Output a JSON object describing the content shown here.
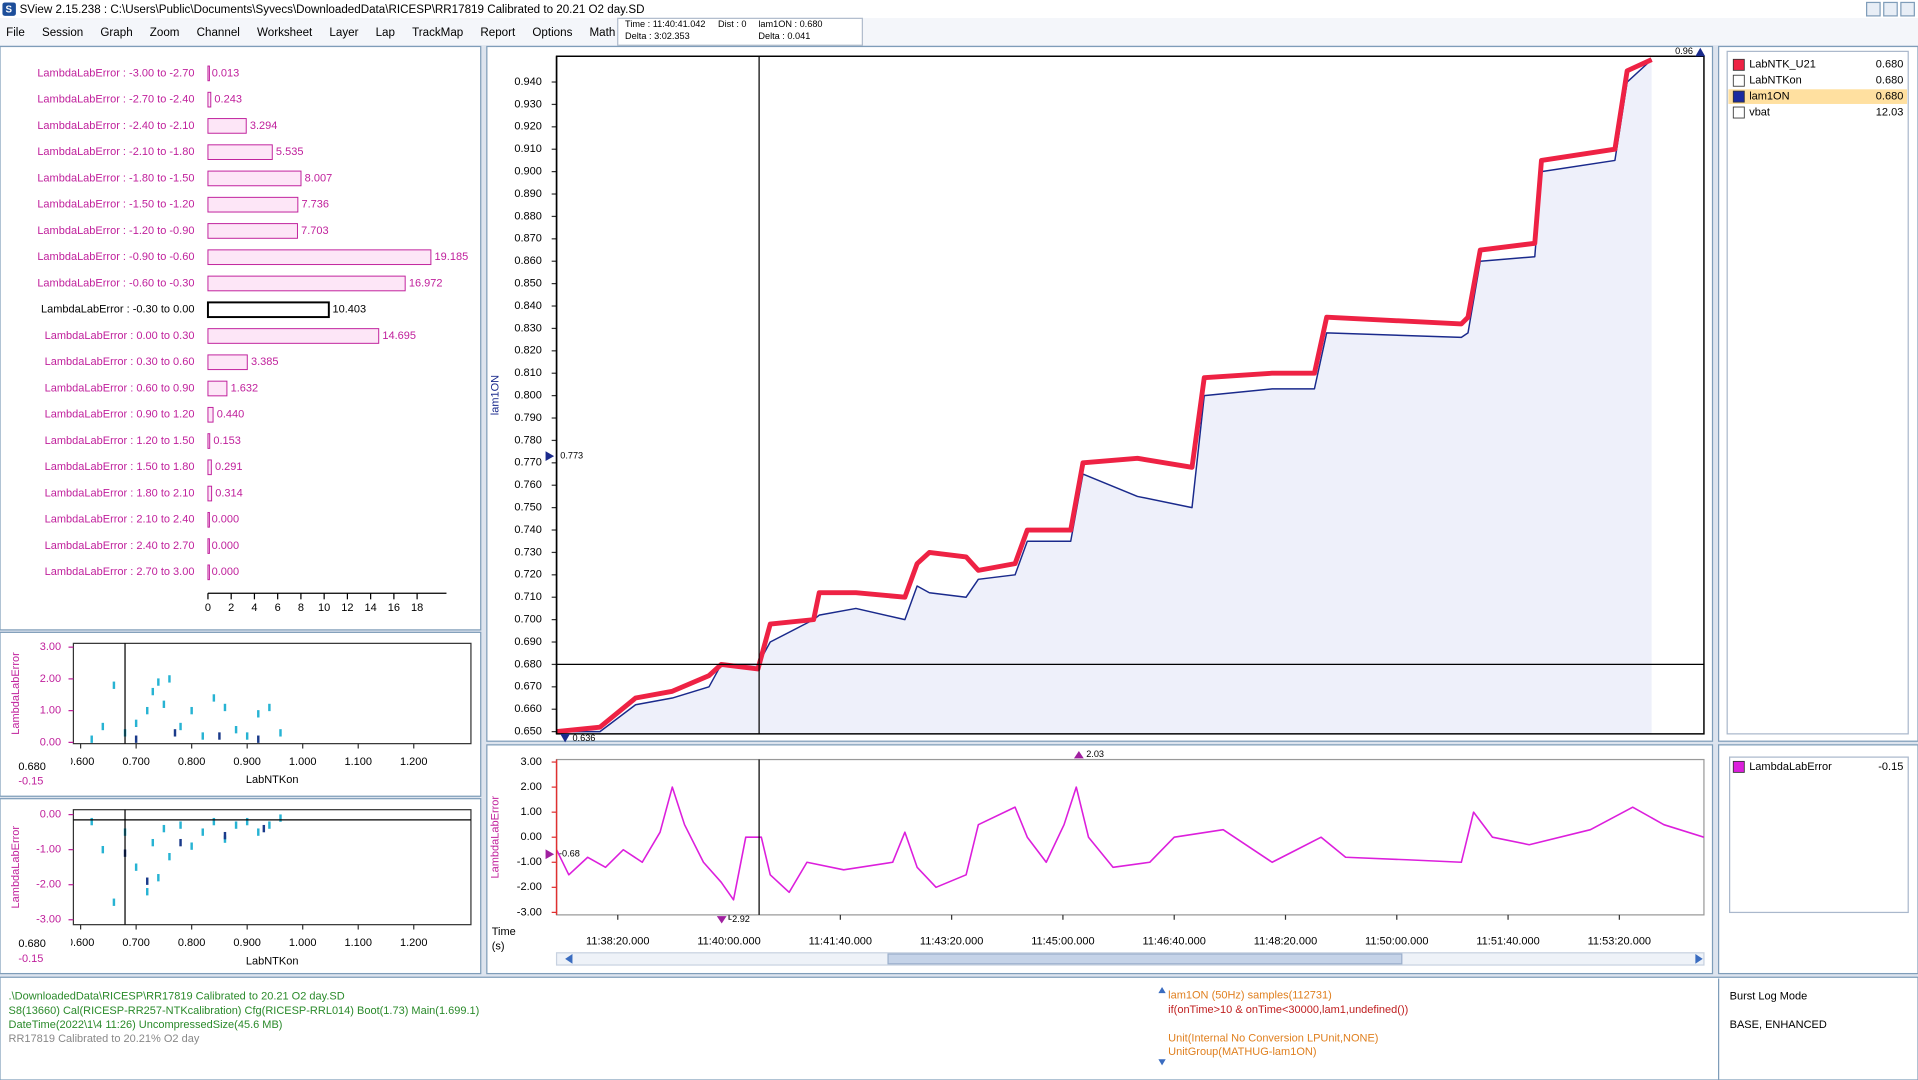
{
  "window": {
    "title": "SView 2.15.238  :  C:\\Users\\Public\\Documents\\Syvecs\\DownloadedData\\RICESP\\RR17819 Calibrated to 20.21 O2 day.SD"
  },
  "menu": [
    "File",
    "Session",
    "Graph",
    "Zoom",
    "Channel",
    "Worksheet",
    "Layer",
    "Lap",
    "TrackMap",
    "Report",
    "Options",
    "Math"
  ],
  "status": {
    "time": "Time : 11:40:41.042",
    "dist": "Dist : 0",
    "channel": "lam1ON : 0.680",
    "delta_time": "Delta : 3:02.353",
    "delta_value": "Delta : 0.041"
  },
  "histogram": {
    "type": "bar",
    "color": "#c0209c",
    "fill": "#fde6f7",
    "selected": 9,
    "selected_color": "#000000",
    "categories": [
      "LambdaLabError : -3.00 to -2.70",
      "LambdaLabError : -2.70 to -2.40",
      "LambdaLabError : -2.40 to -2.10",
      "LambdaLabError : -2.10 to -1.80",
      "LambdaLabError : -1.80 to -1.50",
      "LambdaLabError : -1.50 to -1.20",
      "LambdaLabError : -1.20 to -0.90",
      "LambdaLabError : -0.90 to -0.60",
      "LambdaLabError : -0.60 to -0.30",
      "LambdaLabError : -0.30 to 0.00",
      "LambdaLabError : 0.00 to 0.30",
      "LambdaLabError : 0.30 to 0.60",
      "LambdaLabError : 0.60 to 0.90",
      "LambdaLabError : 0.90 to 1.20",
      "LambdaLabError : 1.20 to 1.50",
      "LambdaLabError : 1.50 to 1.80",
      "LambdaLabError : 1.80 to 2.10",
      "LambdaLabError : 2.10 to 2.40",
      "LambdaLabError : 2.40 to 2.70",
      "LambdaLabError : 2.70 to 3.00"
    ],
    "values": [
      0.013,
      0.243,
      3.294,
      5.535,
      8.007,
      7.736,
      7.703,
      19.185,
      16.972,
      10.403,
      14.695,
      3.385,
      1.632,
      0.44,
      0.153,
      0.291,
      0.314,
      0,
      0,
      0
    ],
    "value_labels": [
      "0.013",
      "0.243",
      "3.294",
      "5.535",
      "8.007",
      "7.736",
      "7.703",
      "19.185",
      "16.972",
      "10.403",
      "14.695",
      "3.385",
      "1.632",
      "0.440",
      "0.153",
      "0.291",
      "0.314",
      "0.000",
      "0.000",
      "0.000"
    ],
    "xlim": [
      0,
      20
    ],
    "xticks": [
      0,
      2,
      4,
      6,
      8,
      10,
      12,
      14,
      16,
      18
    ]
  },
  "scatter_top": {
    "type": "scatter",
    "ylabel": "LambdaLabError",
    "xlabel": "LabNTKon",
    "axis_color": "#c0209c",
    "xlim": [
      0.587,
      1.303
    ],
    "xticks": [
      {
        "value": 0.6,
        "label": "0.600"
      },
      {
        "value": 0.7,
        "label": "0.700"
      },
      {
        "value": 0.8,
        "label": "0.800"
      },
      {
        "value": 0.9,
        "label": "0.900"
      },
      {
        "value": 1.0,
        "label": "1.000"
      },
      {
        "value": 1.1,
        "label": "1.100"
      },
      {
        "value": 1.2,
        "label": "1.200"
      }
    ],
    "ylim": [
      -0.04,
      3.12
    ],
    "yticks": [
      {
        "value": 0,
        "label": "0.00"
      },
      {
        "value": 1,
        "label": "1.00"
      },
      {
        "value": 2,
        "label": "2.00"
      },
      {
        "value": 3,
        "label": "3.00"
      }
    ],
    "cursor_x": 0.68,
    "cursor_y": -0.15,
    "readout": [
      "0.680",
      "-0.15"
    ],
    "series": [
      {
        "color": "#27b3d3",
        "x": [
          0.62,
          0.64,
          0.66,
          0.68,
          0.7,
          0.72,
          0.73,
          0.74,
          0.75,
          0.76,
          0.78,
          0.8,
          0.82,
          0.84,
          0.86,
          0.88,
          0.9,
          0.92,
          0.94,
          0.96
        ],
        "y": [
          0.1,
          0.5,
          1.8,
          0.3,
          0.6,
          1.0,
          1.6,
          1.9,
          1.2,
          2.0,
          0.5,
          1.0,
          0.2,
          1.4,
          1.1,
          0.4,
          0.2,
          0.9,
          1.1,
          0.3
        ]
      },
      {
        "color": "#1a3a8a",
        "x": [
          0.7,
          0.77,
          0.85,
          0.92
        ],
        "y": [
          0.1,
          0.3,
          0.2,
          0.1
        ]
      }
    ]
  },
  "scatter_bottom": {
    "type": "scatter",
    "ylabel": "LambdaLabError",
    "xlabel": "LabNTKon",
    "axis_color": "#c0209c",
    "xlim": [
      0.587,
      1.303
    ],
    "xticks": [
      {
        "value": 0.6,
        "label": "0.600"
      },
      {
        "value": 0.7,
        "label": "0.700"
      },
      {
        "value": 0.8,
        "label": "0.800"
      },
      {
        "value": 0.9,
        "label": "0.900"
      },
      {
        "value": 1.0,
        "label": "1.000"
      },
      {
        "value": 1.1,
        "label": "1.100"
      },
      {
        "value": 1.2,
        "label": "1.200"
      }
    ],
    "ylim": [
      -3.14,
      0.14
    ],
    "yticks": [
      {
        "value": 0,
        "label": "0.00"
      },
      {
        "value": -1,
        "label": "-1.00"
      },
      {
        "value": -2,
        "label": "-2.00"
      },
      {
        "value": -3,
        "label": "-3.00"
      }
    ],
    "cursor_x": 0.68,
    "cursor_y": -0.15,
    "readout": [
      "0.680",
      "-0.15"
    ],
    "series": [
      {
        "color": "#27b3d3",
        "x": [
          0.62,
          0.64,
          0.66,
          0.68,
          0.7,
          0.72,
          0.73,
          0.74,
          0.75,
          0.76,
          0.78,
          0.8,
          0.82,
          0.84,
          0.86,
          0.88,
          0.9,
          0.92,
          0.94,
          0.96
        ],
        "y": [
          -0.2,
          -1.0,
          -2.5,
          -0.5,
          -1.5,
          -2.2,
          -0.8,
          -1.8,
          -0.4,
          -1.2,
          -0.3,
          -0.9,
          -0.5,
          -0.2,
          -0.7,
          -0.3,
          -0.2,
          -0.5,
          -0.3,
          -0.1
        ]
      },
      {
        "color": "#1a3a8a",
        "x": [
          0.68,
          0.72,
          0.78,
          0.86,
          0.93
        ],
        "y": [
          -1.1,
          -1.9,
          -0.8,
          -0.6,
          -0.4
        ]
      }
    ]
  },
  "time_axis": {
    "label": [
      "Time",
      "(s)"
    ],
    "xlim": [
      41845,
      42876
    ],
    "xticks": [
      {
        "value": 41900,
        "label": "11:38:20.000"
      },
      {
        "value": 42000,
        "label": "11:40:00.000"
      },
      {
        "value": 42100,
        "label": "11:41:40.000"
      },
      {
        "value": 42200,
        "label": "11:43:20.000"
      },
      {
        "value": 42300,
        "label": "11:45:00.000"
      },
      {
        "value": 42400,
        "label": "11:46:40.000"
      },
      {
        "value": 42500,
        "label": "11:48:20.000"
      },
      {
        "value": 42600,
        "label": "11:50:00.000"
      },
      {
        "value": 42700,
        "label": "11:51:40.000"
      },
      {
        "value": 42800,
        "label": "11:53:20.000"
      }
    ],
    "cursor": 42027
  },
  "main_chart": {
    "type": "line",
    "ylabel": "lam1ON",
    "area_color": "#eef0fa",
    "ylim": [
      0.649,
      0.9515
    ],
    "yticks": [
      {
        "value": 0.65,
        "label": "0.650"
      },
      {
        "value": 0.66,
        "label": "0.660"
      },
      {
        "value": 0.67,
        "label": "0.670"
      },
      {
        "value": 0.68,
        "label": "0.680"
      },
      {
        "value": 0.69,
        "label": "0.690"
      },
      {
        "value": 0.7,
        "label": "0.700"
      },
      {
        "value": 0.71,
        "label": "0.710"
      },
      {
        "value": 0.72,
        "label": "0.720"
      },
      {
        "value": 0.73,
        "label": "0.730"
      },
      {
        "value": 0.74,
        "label": "0.740"
      },
      {
        "value": 0.75,
        "label": "0.750"
      },
      {
        "value": 0.76,
        "label": "0.760"
      },
      {
        "value": 0.77,
        "label": "0.770"
      },
      {
        "value": 0.78,
        "label": "0.780"
      },
      {
        "value": 0.79,
        "label": "0.790"
      },
      {
        "value": 0.8,
        "label": "0.800"
      },
      {
        "value": 0.81,
        "label": "0.810"
      },
      {
        "value": 0.82,
        "label": "0.820"
      },
      {
        "value": 0.83,
        "label": "0.830"
      },
      {
        "value": 0.84,
        "label": "0.840"
      },
      {
        "value": 0.85,
        "label": "0.850"
      },
      {
        "value": 0.86,
        "label": "0.860"
      },
      {
        "value": 0.87,
        "label": "0.870"
      },
      {
        "value": 0.88,
        "label": "0.880"
      },
      {
        "value": 0.89,
        "label": "0.890"
      },
      {
        "value": 0.9,
        "label": "0.900"
      },
      {
        "value": 0.91,
        "label": "0.910"
      },
      {
        "value": 0.92,
        "label": "0.920"
      },
      {
        "value": 0.93,
        "label": "0.930"
      },
      {
        "value": 0.94,
        "label": "0.940"
      }
    ],
    "cursor_y": 0.68,
    "markers": {
      "left": 0.773,
      "top": 0.96,
      "bottom": 0.636
    },
    "x": [
      41845,
      41884,
      41916,
      41949,
      41982,
      41993,
      42026,
      42037,
      42076,
      42081,
      42114,
      42158,
      42169,
      42180,
      42213,
      42224,
      42257,
      42268,
      42307,
      42318,
      42367,
      42416,
      42427,
      42488,
      42526,
      42537,
      42658,
      42664,
      42675,
      42724,
      42730,
      42796,
      42807,
      42829
    ],
    "series": [
      {
        "color": "#1a2a8c",
        "width": 1.2,
        "area": true,
        "values": [
          0.65,
          0.65,
          0.662,
          0.665,
          0.67,
          0.68,
          0.68,
          0.69,
          0.7,
          0.702,
          0.705,
          0.7,
          0.715,
          0.712,
          0.71,
          0.718,
          0.72,
          0.735,
          0.735,
          0.765,
          0.755,
          0.75,
          0.8,
          0.803,
          0.803,
          0.828,
          0.826,
          0.828,
          0.86,
          0.862,
          0.9,
          0.905,
          0.94,
          0.95
        ]
      },
      {
        "color": "#ee2244",
        "width": 4,
        "area": false,
        "values": [
          0.65,
          0.652,
          0.665,
          0.668,
          0.675,
          0.68,
          0.678,
          0.698,
          0.7,
          0.712,
          0.712,
          0.71,
          0.725,
          0.73,
          0.728,
          0.722,
          0.725,
          0.74,
          0.74,
          0.77,
          0.772,
          0.768,
          0.808,
          0.81,
          0.81,
          0.835,
          0.832,
          0.835,
          0.865,
          0.868,
          0.905,
          0.91,
          0.945,
          0.95
        ]
      }
    ]
  },
  "lower_chart": {
    "type": "line",
    "ylabel": "LambdaLabError",
    "axis_color": "#e03030",
    "ylim": [
      -3.1,
      3.1
    ],
    "yticks": [
      {
        "value": 3,
        "label": "3.00"
      },
      {
        "value": 2,
        "label": "2.00"
      },
      {
        "value": 1,
        "label": "1.00"
      },
      {
        "value": 0,
        "label": "0.00"
      },
      {
        "value": -1,
        "label": "-1.00"
      },
      {
        "value": -2,
        "label": "-2.00"
      },
      {
        "value": -3,
        "label": "-3.00"
      }
    ],
    "markers": {
      "top": 2.03,
      "left": -0.68,
      "bottom": -2.92
    },
    "x": [
      41845,
      41856,
      41873,
      41889,
      41905,
      41922,
      41938,
      41949,
      41960,
      41977,
      41993,
      42004,
      42015,
      42029,
      42037,
      42054,
      42070,
      42103,
      42147,
      42158,
      42169,
      42186,
      42213,
      42224,
      42257,
      42268,
      42285,
      42301,
      42312,
      42323,
      42345,
      42378,
      42400,
      42444,
      42488,
      42510,
      42532,
      42554,
      42609,
      42658,
      42669,
      42686,
      42719,
      42774,
      42812,
      42840,
      42876
    ],
    "series": [
      {
        "color": "#dc1fdc",
        "values": [
          -0.5,
          -1.5,
          -0.8,
          -1.2,
          -0.5,
          -1.0,
          0.2,
          2.0,
          0.5,
          -1.0,
          -1.8,
          -2.5,
          0.0,
          0.0,
          -1.5,
          -2.2,
          -1.0,
          -1.3,
          -1.0,
          0.2,
          -1.2,
          -2.0,
          -1.5,
          0.5,
          1.2,
          0.0,
          -1.0,
          0.5,
          2.0,
          0.0,
          -1.2,
          -1.0,
          0.0,
          0.3,
          -1.0,
          -0.5,
          0.0,
          -0.8,
          -0.9,
          -1.0,
          1.0,
          0.0,
          -0.3,
          0.3,
          1.2,
          0.5,
          0.0
        ]
      }
    ]
  },
  "legend_main": [
    {
      "name": "LabNTK_U21",
      "color": "#ee2244",
      "value": "0.680",
      "highlight": false
    },
    {
      "name": "LabNTKon",
      "color": "#ffffff",
      "value": "0.680",
      "highlight": false
    },
    {
      "name": "lam1ON",
      "color": "#1a2aa0",
      "value": "0.680",
      "highlight": true
    },
    {
      "name": "vbat",
      "color": "#ffffff",
      "value": "12.03",
      "highlight": false
    }
  ],
  "legend_lower": [
    {
      "name": "LambdaLabError",
      "color": "#dc1fdc",
      "value": "-0.15",
      "highlight": false
    }
  ],
  "info": {
    "file": [
      ".\\DownloadedData\\RICESP\\RR17819 Calibrated to 20.21 O2 day.SD",
      "S8(13660) Cal(RICESP-RR257-NTKcalibration) Cfg(RICESP-RRL014) Boot(1.73) Main(1.699.1)",
      "DateTime(2022\\1\\4 11:26) UncompressedSize(45.6 MB)",
      "RR17819 Calibrated to 20.21% O2 day"
    ],
    "expression": [
      "lam1ON (50Hz) samples(112731)",
      "if(onTime>10 & onTime<30000,lam1,undefined())",
      "Unit(Internal No Conversion LPUnit,NONE)",
      "UnitGroup(MATHUG-lam1ON)"
    ],
    "log": [
      "Burst Log Mode",
      "BASE, ENHANCED"
    ]
  }
}
